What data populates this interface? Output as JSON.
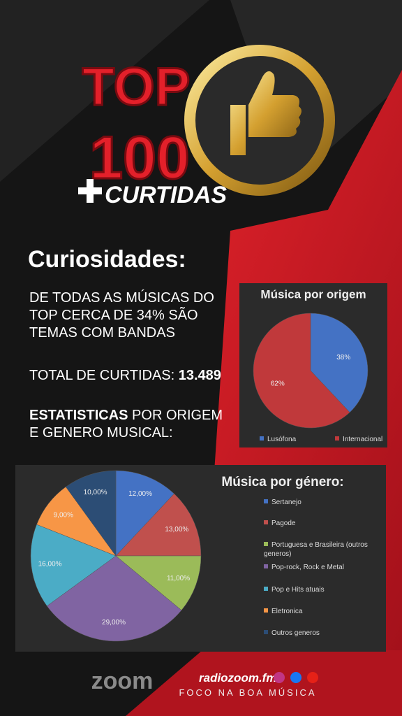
{
  "header": {
    "line1": "TOP",
    "line2": "100",
    "line3": "CURTIDAS"
  },
  "section_title": "Curiosidades:",
  "paragraph": "DE TODAS AS MÚSICAS DO TOP CERCA DE  34% SÃO TEMAS COM BANDAS",
  "total_label": "TOTAL DE CURTIDAS:",
  "total_value": "13.489",
  "stats_bold": "ESTATISTICAS",
  "stats_rest": "POR ORIGEM E GENERO MUSICAL:",
  "footer": {
    "logo": "zoom",
    "site": "radiozoom.fm",
    "slogan": "FOCO NA BOA MÚSICA"
  },
  "chart_data": [
    {
      "type": "pie",
      "title": "Música por origem",
      "categories": [
        "Lusófona",
        "Internacional"
      ],
      "values": [
        38,
        62
      ],
      "value_labels": [
        "38%",
        "62%"
      ],
      "colors": [
        "#4472c4",
        "#c0393b"
      ],
      "legend": "bottom"
    },
    {
      "type": "pie",
      "title": "Música por género:",
      "categories": [
        "Sertanejo",
        "Pagode",
        "Portuguesa e Brasileira (outros generos)",
        "Pop-rock, Rock e Metal",
        "Pop e Hits atuais",
        "Eletronica",
        "Outros generos"
      ],
      "values": [
        12,
        13,
        11,
        29,
        16,
        9,
        10
      ],
      "value_labels": [
        "12,00%",
        "13,00%",
        "11,00%",
        "29,00%",
        "16,00%",
        "9,00%",
        "10,00%"
      ],
      "colors": [
        "#4472c4",
        "#c0504d",
        "#9bbb59",
        "#8064a2",
        "#4bacc6",
        "#f79646",
        "#2c4d75"
      ],
      "legend": "right"
    }
  ]
}
